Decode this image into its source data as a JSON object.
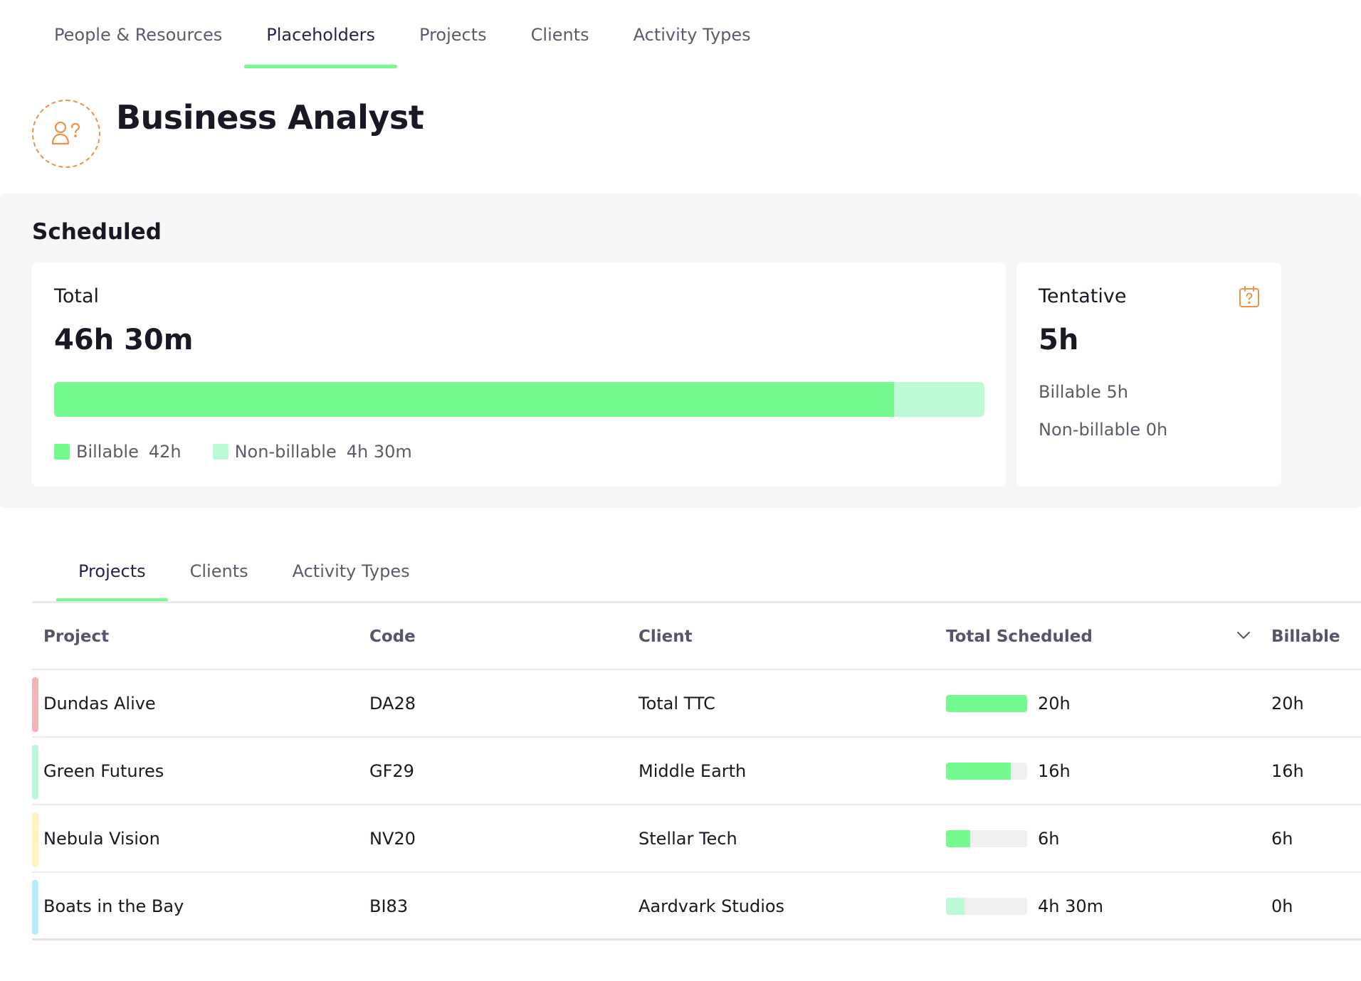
{
  "top_nav": {
    "tabs": [
      {
        "label": "People & Resources",
        "active": false
      },
      {
        "label": "Placeholders",
        "active": true
      },
      {
        "label": "Projects",
        "active": false
      },
      {
        "label": "Clients",
        "active": false
      },
      {
        "label": "Activity Types",
        "active": false
      }
    ]
  },
  "header": {
    "avatar_icon": "person-question-icon",
    "title": "Business Analyst"
  },
  "scheduled": {
    "title": "Scheduled",
    "total": {
      "label": "Total",
      "value": "46h 30m",
      "billable_fraction": 0.903,
      "billable_label": "Billable",
      "billable_value": "42h",
      "nonbillable_label": "Non-billable",
      "nonbillable_value": "4h 30m"
    },
    "tentative": {
      "label": "Tentative",
      "icon": "calendar-question-icon",
      "value": "5h",
      "billable_line": "Billable 5h",
      "nonbillable_line": "Non-billable 0h"
    }
  },
  "sub_tabs": {
    "tabs": [
      {
        "label": "Projects",
        "active": true
      },
      {
        "label": "Clients",
        "active": false
      },
      {
        "label": "Activity Types",
        "active": false
      }
    ]
  },
  "table": {
    "headers": {
      "project": "Project",
      "code": "Code",
      "client": "Client",
      "total_scheduled": "Total Scheduled",
      "billable": "Billable"
    },
    "rows": [
      {
        "project": "Dundas Alive",
        "code": "DA28",
        "client": "Total TTC",
        "total_scheduled": "20h",
        "billable": "20h",
        "fraction": 1.0,
        "strip_color": "#f2b4b7",
        "bar_color": "#74fb8f"
      },
      {
        "project": "Green Futures",
        "code": "GF29",
        "client": "Middle Earth",
        "total_scheduled": "16h",
        "billable": "16h",
        "fraction": 0.8,
        "strip_color": "#bcf5d9",
        "bar_color": "#74fb8f"
      },
      {
        "project": "Nebula Vision",
        "code": "NV20",
        "client": "Stellar Tech",
        "total_scheduled": "6h",
        "billable": "6h",
        "fraction": 0.3,
        "strip_color": "#fdf5bd",
        "bar_color": "#74fb8f"
      },
      {
        "project": "Boats in the Bay",
        "code": "BI83",
        "client": "Aardvark Studios",
        "total_scheduled": "4h 30m",
        "billable": "0h",
        "fraction": 0.225,
        "strip_color": "#b8edf7",
        "bar_color": "#bcfbd6"
      }
    ]
  }
}
